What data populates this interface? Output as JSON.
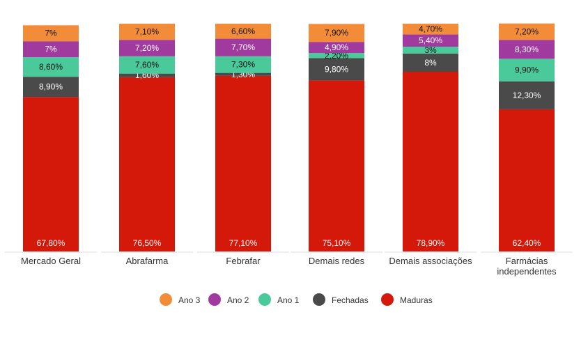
{
  "chart_data": {
    "type": "bar",
    "stacked": true,
    "categories": [
      [
        "Mercado Geral"
      ],
      [
        "Abrafarma"
      ],
      [
        "Febrafar"
      ],
      [
        "Demais redes"
      ],
      [
        "Demais associações"
      ],
      [
        "Farmácias",
        "independentes"
      ]
    ],
    "series": [
      {
        "name": "Maduras",
        "color": "#d4190b",
        "values": [
          67.8,
          76.5,
          77.1,
          75.1,
          78.9,
          62.4
        ],
        "labels": [
          "67,80%",
          "76,50%",
          "77,10%",
          "75,10%",
          "78,90%",
          "62,40%"
        ]
      },
      {
        "name": "Fechadas",
        "color": "#4a4a4a",
        "values": [
          8.9,
          1.6,
          1.3,
          9.8,
          8.0,
          12.3
        ],
        "labels": [
          "8,90%",
          "1,60%",
          "1,30%",
          "9,80%",
          "8%",
          "12,30%"
        ]
      },
      {
        "name": "Ano 1",
        "color": "#4ac99b",
        "values": [
          8.6,
          7.6,
          7.3,
          2.2,
          3.0,
          9.9
        ],
        "labels": [
          "8,60%",
          "7,60%",
          "7,30%",
          "2,20%",
          "3%",
          "9,90%"
        ]
      },
      {
        "name": "Ano 2",
        "color": "#a03a9f",
        "values": [
          7.0,
          7.2,
          7.7,
          4.9,
          5.4,
          8.3
        ],
        "labels": [
          "7%",
          "7,20%",
          "7,70%",
          "4,90%",
          "5,40%",
          "8,30%"
        ]
      },
      {
        "name": "Ano 3",
        "color": "#f28c38",
        "values": [
          7.0,
          7.1,
          6.6,
          7.9,
          4.7,
          7.2
        ],
        "labels": [
          "7%",
          "7,10%",
          "6,60%",
          "7,90%",
          "4,70%",
          "7,20%"
        ]
      }
    ],
    "legend": {
      "position": "bottom",
      "order": [
        "Ano 3",
        "Ano 2",
        "Ano 1",
        "Fechadas",
        "Maduras"
      ]
    },
    "ylim": [
      0,
      100
    ],
    "grid": false
  }
}
